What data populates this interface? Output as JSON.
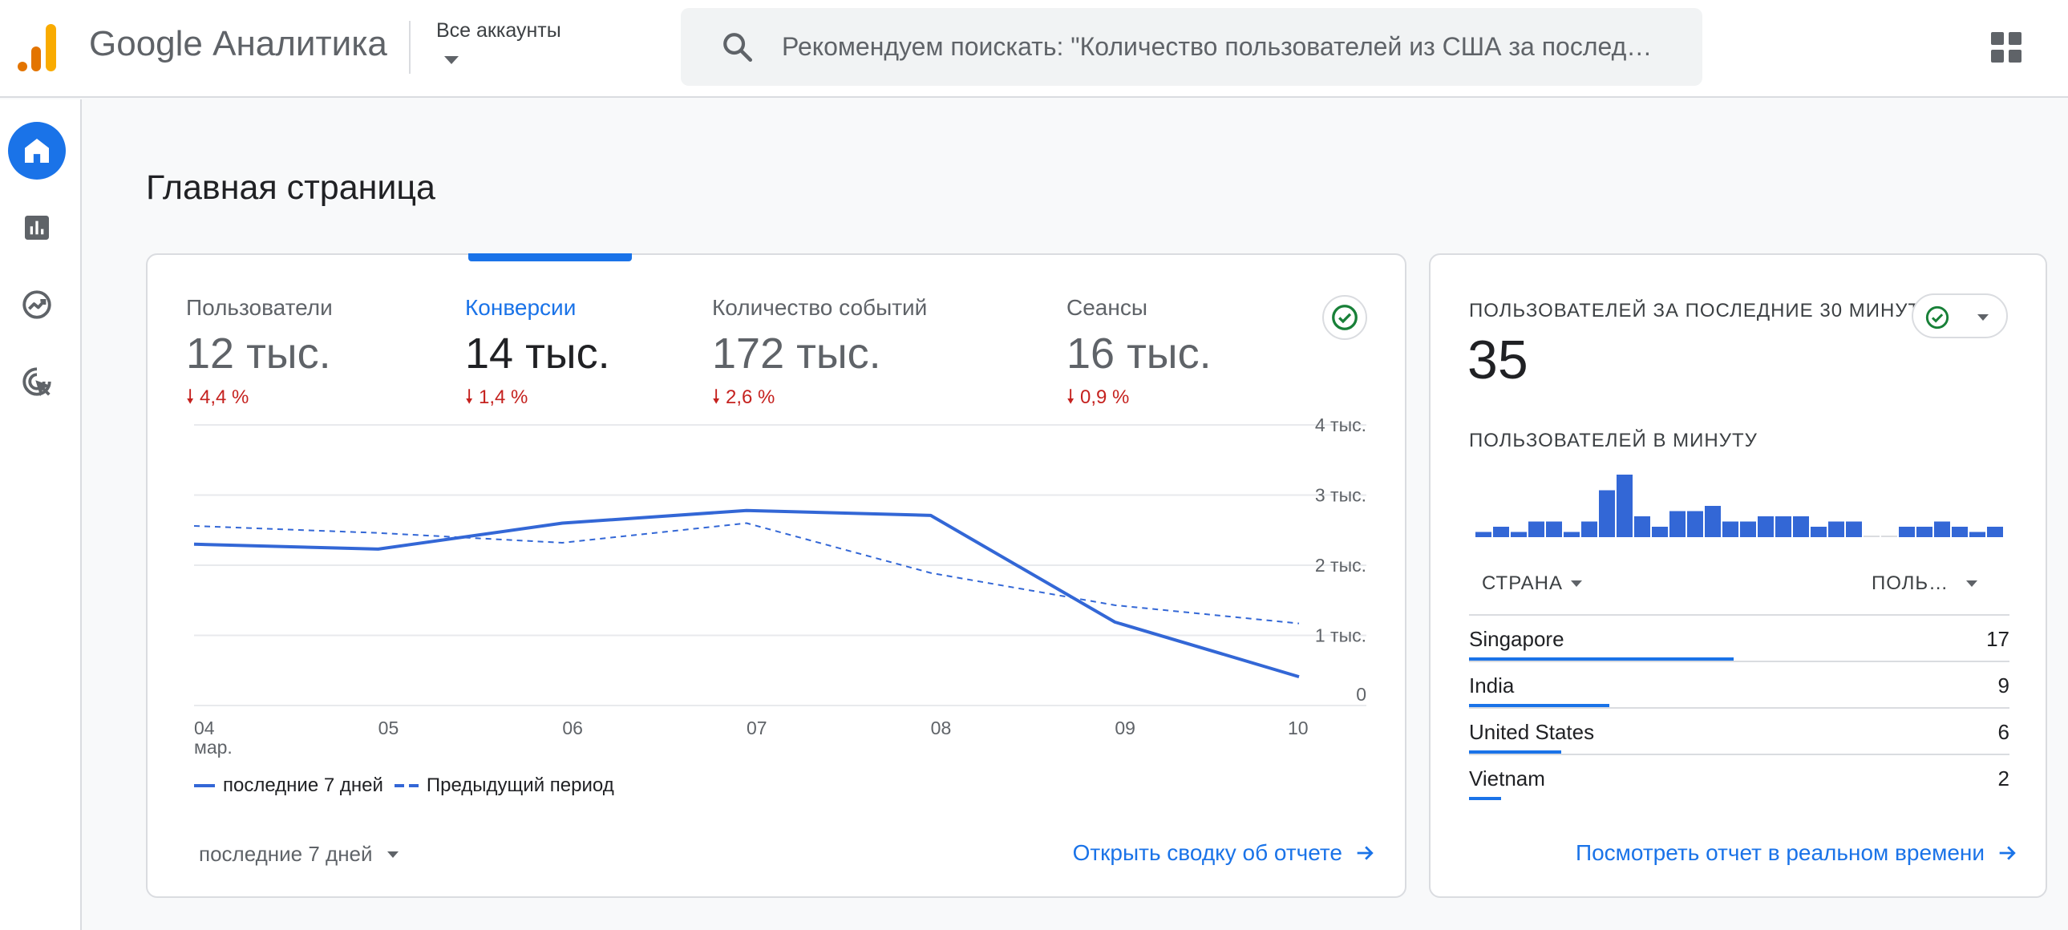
{
  "app": {
    "brand": "Google Аналитика",
    "accounts_label": "Все аккаунты",
    "search_placeholder": "Рекомендуем поискать: \"Количество пользователей из США за послед…",
    "colors": {
      "accent": "#1a73e8",
      "negative": "#c5221f",
      "logo_orange": "#f9ab00",
      "logo_dark": "#e37400"
    }
  },
  "nav": {
    "items": [
      {
        "icon": "home-icon",
        "active": true
      },
      {
        "icon": "reports-icon",
        "active": false
      },
      {
        "icon": "explore-icon",
        "active": false
      },
      {
        "icon": "advertising-icon",
        "active": false
      }
    ]
  },
  "page": {
    "title": "Главная страница"
  },
  "overview": {
    "metrics": [
      {
        "label": "Пользователи",
        "value": "12 тыс.",
        "change": "4,4 %",
        "active": false
      },
      {
        "label": "Конверсии",
        "value": "14 тыс.",
        "change": "1,4 %",
        "active": true
      },
      {
        "label": "Количество событий",
        "value": "172 тыс.",
        "change": "2,6 %",
        "active": false
      },
      {
        "label": "Сеансы",
        "value": "16 тыс.",
        "change": "0,9 %",
        "active": false
      }
    ],
    "legend": {
      "current": "последние 7 дней",
      "previous": "Предыдущий период"
    },
    "period_select": "последние 7 дней",
    "link": "Открыть сводку об отчете"
  },
  "chart_data": {
    "type": "line",
    "x": [
      "04",
      "05",
      "06",
      "07",
      "08",
      "09",
      "10"
    ],
    "x_sublabel": "мар.",
    "y_ticks": [
      "0",
      "1 тыс.",
      "2 тыс.",
      "3 тыс.",
      "4 тыс."
    ],
    "ylim": [
      0,
      4000
    ],
    "grid": true,
    "legend_position": "bottom-left",
    "series": [
      {
        "name": "последние 7 дней",
        "style": "solid",
        "values": [
          2300,
          2230,
          2600,
          2780,
          2710,
          1190,
          410
        ]
      },
      {
        "name": "Предыдущий период",
        "style": "dashed",
        "values": [
          2560,
          2460,
          2320,
          2600,
          1890,
          1430,
          1170
        ]
      }
    ]
  },
  "realtime": {
    "title": "ПОЛЬЗОВАТЕЛЕЙ ЗА ПОСЛЕДНИЕ 30 МИНУТ",
    "value": "35",
    "per_minute_label": "ПОЛЬЗОВАТЕЛЕЙ В МИНУТУ",
    "per_minute": [
      1,
      2,
      1,
      3,
      3,
      1,
      3,
      9,
      12,
      4,
      2,
      5,
      5,
      6,
      3,
      3,
      4,
      4,
      4,
      2,
      3,
      3,
      0,
      0,
      2,
      2,
      3,
      2,
      1,
      2
    ],
    "col_country": "СТРАНА",
    "col_users": "ПОЛЬ…",
    "rows": [
      {
        "country": "Singapore",
        "users": "17",
        "share": 0.49
      },
      {
        "country": "India",
        "users": "9",
        "share": 0.26
      },
      {
        "country": "United States",
        "users": "6",
        "share": 0.17
      },
      {
        "country": "Vietnam",
        "users": "2",
        "share": 0.06
      }
    ],
    "link": "Посмотреть отчет в реальном времени"
  }
}
